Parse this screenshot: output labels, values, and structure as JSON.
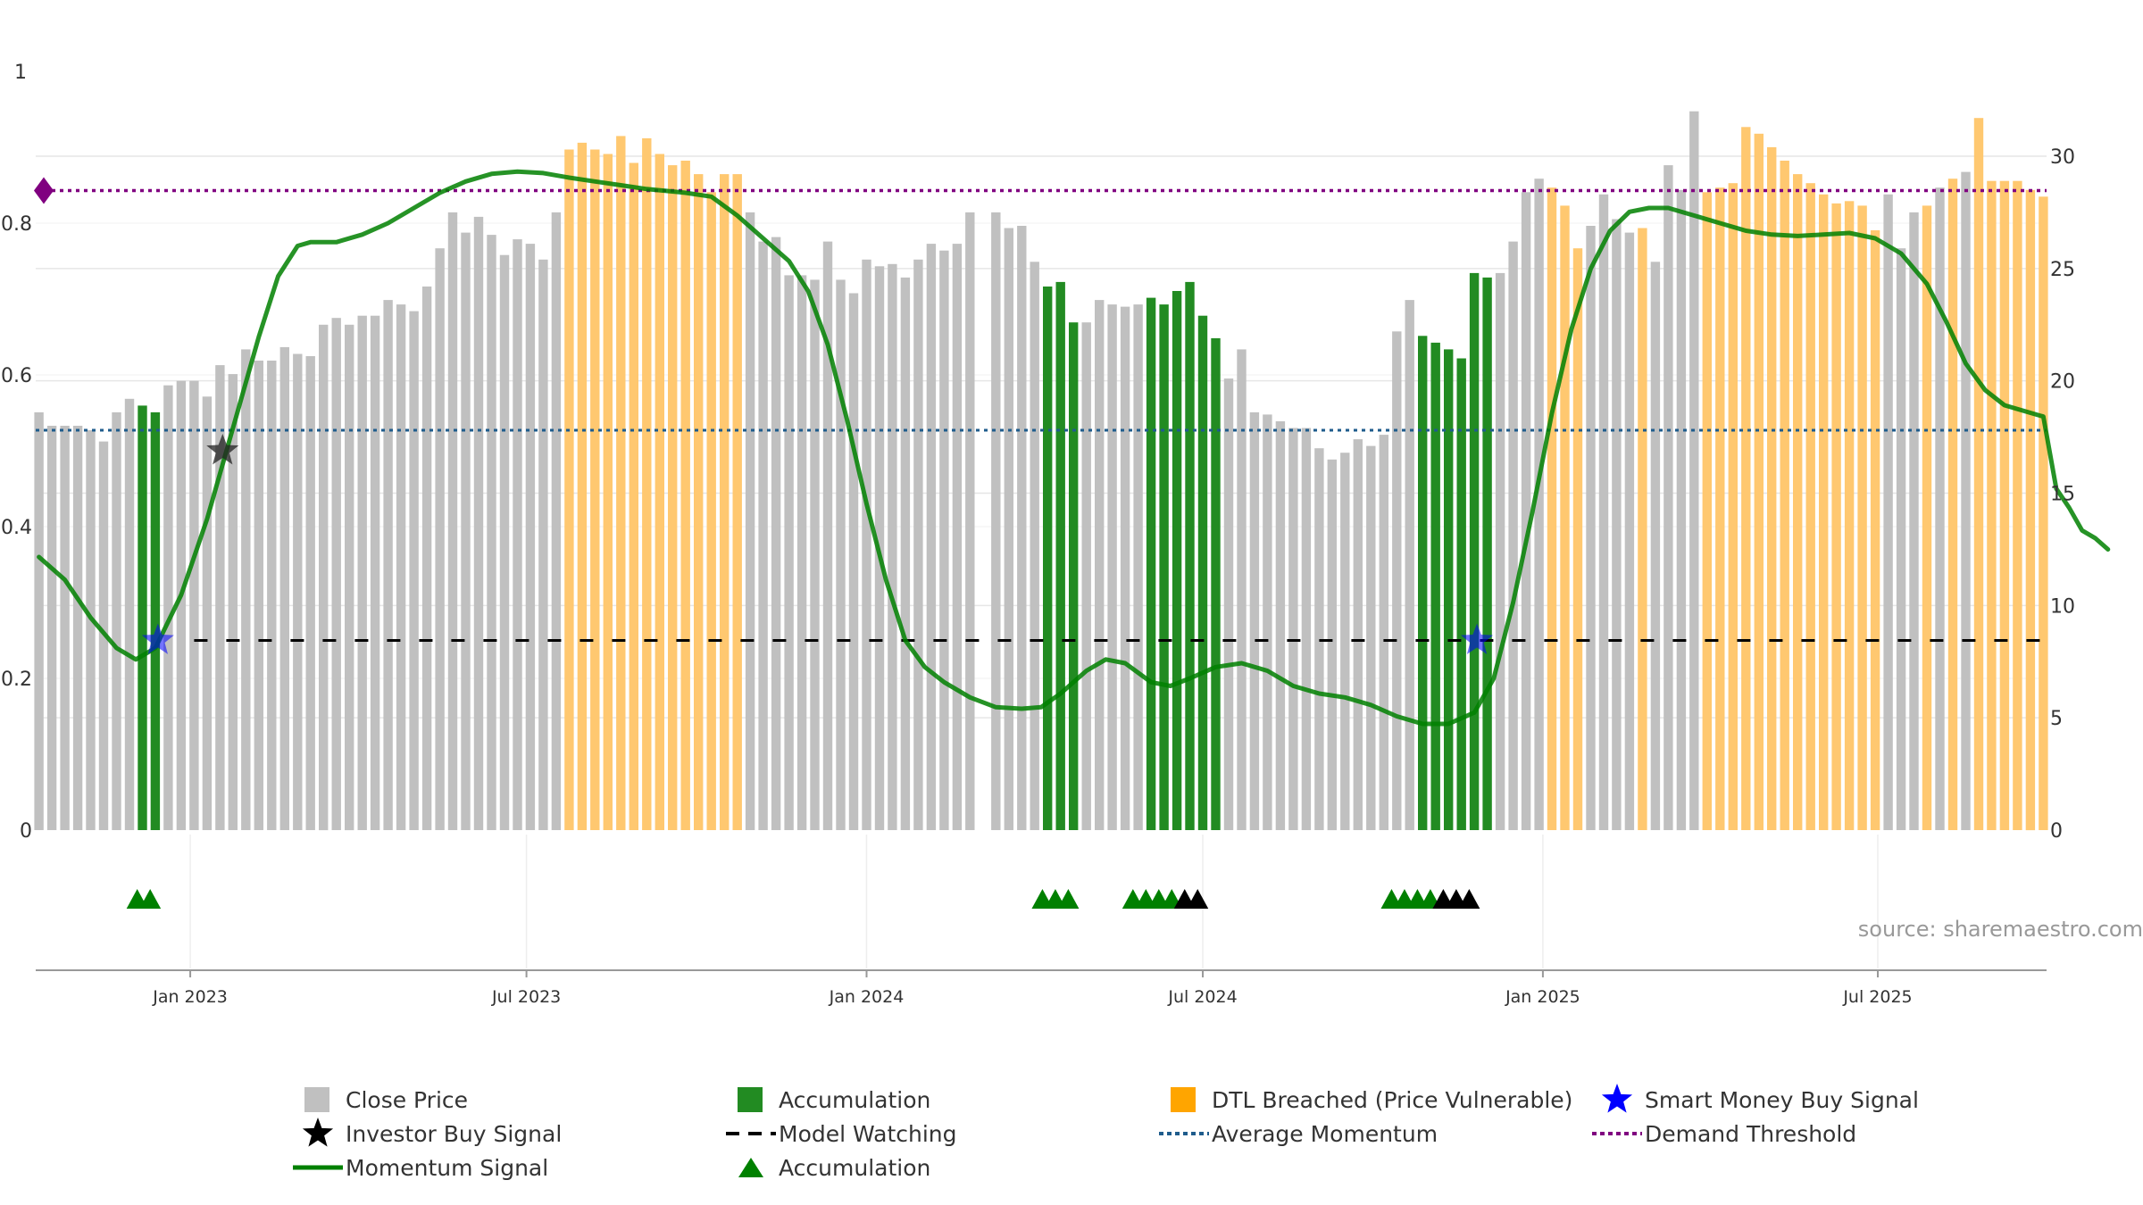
{
  "source": "source: sharemaestro.com",
  "colors": {
    "close": "#c0c0c0",
    "accumulation": "#228b22",
    "dtl": "#ffc870",
    "momentum": "#008000",
    "watching": "#000000",
    "average": "#1f5c8c",
    "demand": "#800080",
    "smart": "#0000ff",
    "investor": "#222222",
    "grid": "#e6e6e6"
  },
  "chart_data": {
    "type": "bar",
    "title": "",
    "x_tick_labels": [
      "Jan 2023",
      "Jul 2023",
      "Jan 2024",
      "Jul 2024",
      "Jan 2025",
      "Jul 2025"
    ],
    "x_tick_weeks": [
      11.7,
      37.7,
      64,
      90,
      116.3,
      142.2
    ],
    "left_axis": {
      "ticks": [
        "0",
        "0.2",
        "0.4",
        "0.6",
        "0.8",
        "1"
      ],
      "ylim": [
        0,
        1
      ]
    },
    "right_axis": {
      "ticks": [
        "0",
        "5",
        "10",
        "15",
        "20",
        "25",
        "30"
      ],
      "ylim": [
        0,
        30
      ]
    },
    "close_price": [
      18.6,
      18.0,
      18.0,
      18.0,
      17.8,
      17.3,
      18.6,
      19.2,
      18.9,
      18.6,
      19.8,
      20.0,
      20.0,
      19.3,
      20.7,
      20.3,
      21.4,
      20.9,
      20.9,
      21.5,
      21.2,
      21.1,
      22.5,
      22.8,
      22.5,
      22.9,
      22.9,
      23.6,
      23.4,
      23.1,
      24.2,
      25.9,
      27.5,
      26.6,
      27.3,
      26.5,
      25.6,
      26.3,
      26.1,
      25.4,
      27.5,
      30.3,
      30.6,
      30.3,
      30.1,
      30.9,
      29.7,
      30.8,
      30.1,
      29.6,
      29.8,
      29.2,
      28.4,
      29.2,
      29.2,
      27.5,
      26.2,
      26.4,
      24.7,
      24.7,
      24.5,
      26.2,
      24.5,
      23.9,
      25.4,
      25.1,
      25.2,
      24.6,
      25.4,
      26.1,
      25.8,
      26.1,
      27.5,
      0,
      27.5,
      26.8,
      26.9,
      25.3,
      24.2,
      24.4,
      22.6,
      22.6,
      23.6,
      23.4,
      23.3,
      23.4,
      23.7,
      23.4,
      24.0,
      24.4,
      22.9,
      21.9,
      20.1,
      21.4,
      18.6,
      18.5,
      18.2,
      17.9,
      17.9,
      17.0,
      16.5,
      16.8,
      17.4,
      17.1,
      17.6,
      22.2,
      23.6,
      22.0,
      21.7,
      21.4,
      21.0,
      24.8,
      24.6,
      24.8,
      26.2,
      28.4,
      29.0,
      28.6,
      27.8,
      25.9,
      26.9,
      28.3,
      27.2,
      26.6,
      26.8,
      25.3,
      29.6,
      28.5,
      32.0,
      28.4,
      28.6,
      28.8,
      31.3,
      31.0,
      30.4,
      29.8,
      29.2,
      28.8,
      28.3,
      27.9,
      28.0,
      27.8,
      26.7,
      28.3,
      25.9,
      27.5,
      27.8,
      28.6,
      29.0,
      29.3,
      31.7,
      28.9,
      28.9,
      28.9,
      28.5,
      28.2
    ],
    "bar_class": [
      "c",
      "c",
      "c",
      "c",
      "c",
      "c",
      "c",
      "c",
      "a",
      "a",
      "c",
      "c",
      "c",
      "c",
      "c",
      "c",
      "c",
      "c",
      "c",
      "c",
      "c",
      "c",
      "c",
      "c",
      "c",
      "c",
      "c",
      "c",
      "c",
      "c",
      "c",
      "c",
      "c",
      "c",
      "c",
      "c",
      "c",
      "c",
      "c",
      "c",
      "c",
      "d",
      "d",
      "d",
      "d",
      "d",
      "d",
      "d",
      "d",
      "d",
      "d",
      "d",
      "d",
      "d",
      "d",
      "c",
      "c",
      "c",
      "c",
      "c",
      "c",
      "c",
      "c",
      "c",
      "c",
      "c",
      "c",
      "c",
      "c",
      "c",
      "c",
      "c",
      "c",
      "c",
      "c",
      "c",
      "c",
      "c",
      "a",
      "a",
      "a",
      "c",
      "c",
      "c",
      "c",
      "c",
      "a",
      "a",
      "a",
      "a",
      "a",
      "a",
      "c",
      "c",
      "c",
      "c",
      "c",
      "c",
      "c",
      "c",
      "c",
      "c",
      "c",
      "c",
      "c",
      "c",
      "c",
      "a",
      "a",
      "a",
      "a",
      "a",
      "a",
      "c",
      "c",
      "c",
      "c",
      "d",
      "d",
      "d",
      "c",
      "c",
      "c",
      "c",
      "d",
      "c",
      "c",
      "c",
      "c",
      "d",
      "d",
      "d",
      "d",
      "d",
      "d",
      "d",
      "d",
      "d",
      "d",
      "d",
      "d",
      "d",
      "d",
      "c",
      "c",
      "c",
      "d",
      "c",
      "d",
      "c",
      "d",
      "d",
      "d",
      "d",
      "d",
      "d",
      "d",
      "d",
      "d"
    ],
    "momentum_signal": [
      [
        0,
        0.36
      ],
      [
        2,
        0.33
      ],
      [
        4,
        0.28
      ],
      [
        6,
        0.24
      ],
      [
        7.5,
        0.225
      ],
      [
        9,
        0.24
      ],
      [
        11,
        0.31
      ],
      [
        13,
        0.41
      ],
      [
        15,
        0.53
      ],
      [
        17,
        0.65
      ],
      [
        18.5,
        0.73
      ],
      [
        20,
        0.77
      ],
      [
        21,
        0.775
      ],
      [
        23,
        0.775
      ],
      [
        25,
        0.785
      ],
      [
        27,
        0.8
      ],
      [
        29,
        0.82
      ],
      [
        31,
        0.84
      ],
      [
        33,
        0.855
      ],
      [
        35,
        0.865
      ],
      [
        37,
        0.868
      ],
      [
        39,
        0.866
      ],
      [
        41,
        0.86
      ],
      [
        43,
        0.855
      ],
      [
        45,
        0.85
      ],
      [
        47,
        0.845
      ],
      [
        50,
        0.84
      ],
      [
        52,
        0.835
      ],
      [
        54,
        0.81
      ],
      [
        56,
        0.78
      ],
      [
        58,
        0.75
      ],
      [
        59.5,
        0.71
      ],
      [
        61,
        0.64
      ],
      [
        62.5,
        0.54
      ],
      [
        64,
        0.43
      ],
      [
        65.5,
        0.33
      ],
      [
        67,
        0.25
      ],
      [
        68.5,
        0.215
      ],
      [
        70,
        0.195
      ],
      [
        72,
        0.175
      ],
      [
        74,
        0.162
      ],
      [
        76,
        0.16
      ],
      [
        77.5,
        0.162
      ],
      [
        79,
        0.18
      ],
      [
        81,
        0.21
      ],
      [
        82.5,
        0.225
      ],
      [
        84,
        0.22
      ],
      [
        86,
        0.195
      ],
      [
        87.5,
        0.19
      ],
      [
        89,
        0.2
      ],
      [
        91,
        0.215
      ],
      [
        93,
        0.22
      ],
      [
        95,
        0.21
      ],
      [
        97,
        0.19
      ],
      [
        99,
        0.18
      ],
      [
        101,
        0.175
      ],
      [
        103,
        0.165
      ],
      [
        105,
        0.15
      ],
      [
        107,
        0.14
      ],
      [
        109,
        0.14
      ],
      [
        111,
        0.155
      ],
      [
        112.5,
        0.2
      ],
      [
        114,
        0.3
      ],
      [
        115.5,
        0.42
      ],
      [
        117,
        0.55
      ],
      [
        118.5,
        0.66
      ],
      [
        120,
        0.74
      ],
      [
        121.5,
        0.79
      ],
      [
        123,
        0.815
      ],
      [
        124.5,
        0.82
      ],
      [
        126,
        0.82
      ],
      [
        128,
        0.81
      ],
      [
        130,
        0.8
      ],
      [
        132,
        0.79
      ],
      [
        134,
        0.785
      ],
      [
        136,
        0.783
      ],
      [
        138,
        0.785
      ],
      [
        140,
        0.787
      ],
      [
        142,
        0.78
      ],
      [
        144,
        0.76
      ],
      [
        146,
        0.72
      ],
      [
        147.5,
        0.67
      ],
      [
        149,
        0.615
      ],
      [
        150.5,
        0.58
      ],
      [
        152,
        0.56
      ],
      [
        154,
        0.55
      ],
      [
        155,
        0.545
      ],
      [
        156,
        0.45
      ],
      [
        157,
        0.425
      ],
      [
        158,
        0.395
      ],
      [
        159,
        0.385
      ],
      [
        160,
        0.37
      ]
    ],
    "model_watching_level": 0.25,
    "average_momentum_level": 0.527,
    "demand_threshold_level": 0.843,
    "smart_money_buy_signals": [
      [
        9.2,
        0.25
      ],
      [
        111.2,
        0.25
      ]
    ],
    "investor_buy_signals": [
      [
        14.2,
        0.5
      ]
    ],
    "accumulation_markers_green": [
      7.6,
      8.6,
      77.6,
      78.6,
      79.6,
      84.6,
      85.6,
      86.6,
      87.6,
      104.6,
      105.6,
      106.6,
      107.6
    ],
    "accumulation_markers_black": [
      88.6,
      89.6,
      108.6,
      109.6,
      110.6
    ]
  },
  "legend": [
    {
      "label": "Close Price",
      "symbol": "square-gray"
    },
    {
      "label": "Accumulation",
      "symbol": "square-green"
    },
    {
      "label": "DTL Breached (Price Vulnerable)",
      "symbol": "square-orange"
    },
    {
      "label": "Smart Money Buy Signal",
      "symbol": "star-blue"
    },
    {
      "label": "Investor Buy Signal",
      "symbol": "star-black"
    },
    {
      "label": "Model Watching",
      "symbol": "dash-black"
    },
    {
      "label": "Average Momentum",
      "symbol": "dot-blue"
    },
    {
      "label": "Demand Threshold",
      "symbol": "dot-purple"
    },
    {
      "label": "Momentum Signal",
      "symbol": "line-green"
    },
    {
      "label": "Accumulation",
      "symbol": "triangle-green"
    }
  ]
}
